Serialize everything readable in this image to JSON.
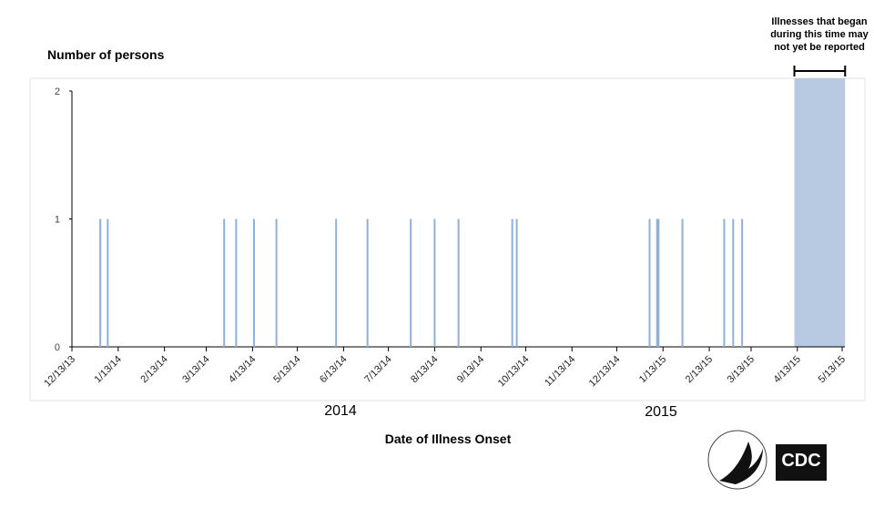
{
  "chart_data": {
    "type": "bar",
    "y_axis_title": "Number of persons",
    "x_axis_title": "Date of Illness Onset",
    "x": [
      "2014-01-01",
      "2014-01-06",
      "2014-03-25",
      "2014-04-02",
      "2014-04-14",
      "2014-04-29",
      "2014-06-08",
      "2014-06-29",
      "2014-07-28",
      "2014-08-13",
      "2014-08-29",
      "2014-10-04",
      "2014-10-07",
      "2015-01-04",
      "2015-01-09",
      "2015-01-10",
      "2015-01-26",
      "2015-02-23",
      "2015-03-01",
      "2015-03-07"
    ],
    "values": [
      1,
      1,
      1,
      1,
      1,
      1,
      1,
      1,
      1,
      1,
      1,
      1,
      1,
      1,
      1,
      1,
      1,
      1,
      1,
      1
    ],
    "color": "#8fb0dc",
    "xlim": [
      "2013-12-13",
      "2015-05-13"
    ],
    "xticks": [
      {
        "value": "2013-12-13",
        "label": "12/13/13"
      },
      {
        "value": "2014-01-13",
        "label": "1/13/14"
      },
      {
        "value": "2014-02-13",
        "label": "2/13/14"
      },
      {
        "value": "2014-03-13",
        "label": "3/13/14"
      },
      {
        "value": "2014-04-13",
        "label": "4/13/14"
      },
      {
        "value": "2014-05-13",
        "label": "5/13/14"
      },
      {
        "value": "2014-06-13",
        "label": "6/13/14"
      },
      {
        "value": "2014-07-13",
        "label": "7/13/14"
      },
      {
        "value": "2014-08-13",
        "label": "8/13/14"
      },
      {
        "value": "2014-09-13",
        "label": "9/13/14"
      },
      {
        "value": "2014-10-13",
        "label": "10/13/14"
      },
      {
        "value": "2014-11-13",
        "label": "11/13/14"
      },
      {
        "value": "2014-12-13",
        "label": "12/13/14"
      },
      {
        "value": "2015-01-13",
        "label": "1/13/15"
      },
      {
        "value": "2015-02-13",
        "label": "2/13/15"
      },
      {
        "value": "2015-03-13",
        "label": "3/13/15"
      },
      {
        "value": "2015-04-13",
        "label": "4/13/15"
      },
      {
        "value": "2015-05-13",
        "label": "5/13/15"
      }
    ],
    "ylim": [
      0,
      2
    ],
    "yticks": [
      0,
      1,
      2
    ],
    "year_labels": [
      "2014",
      "2015"
    ],
    "shaded_region": {
      "start": "2015-04-11",
      "end": "2015-05-15",
      "color": "#b8c9e2",
      "label": "Illnesses that began during this time may not yet be reported"
    },
    "logo_text": "CDC"
  }
}
